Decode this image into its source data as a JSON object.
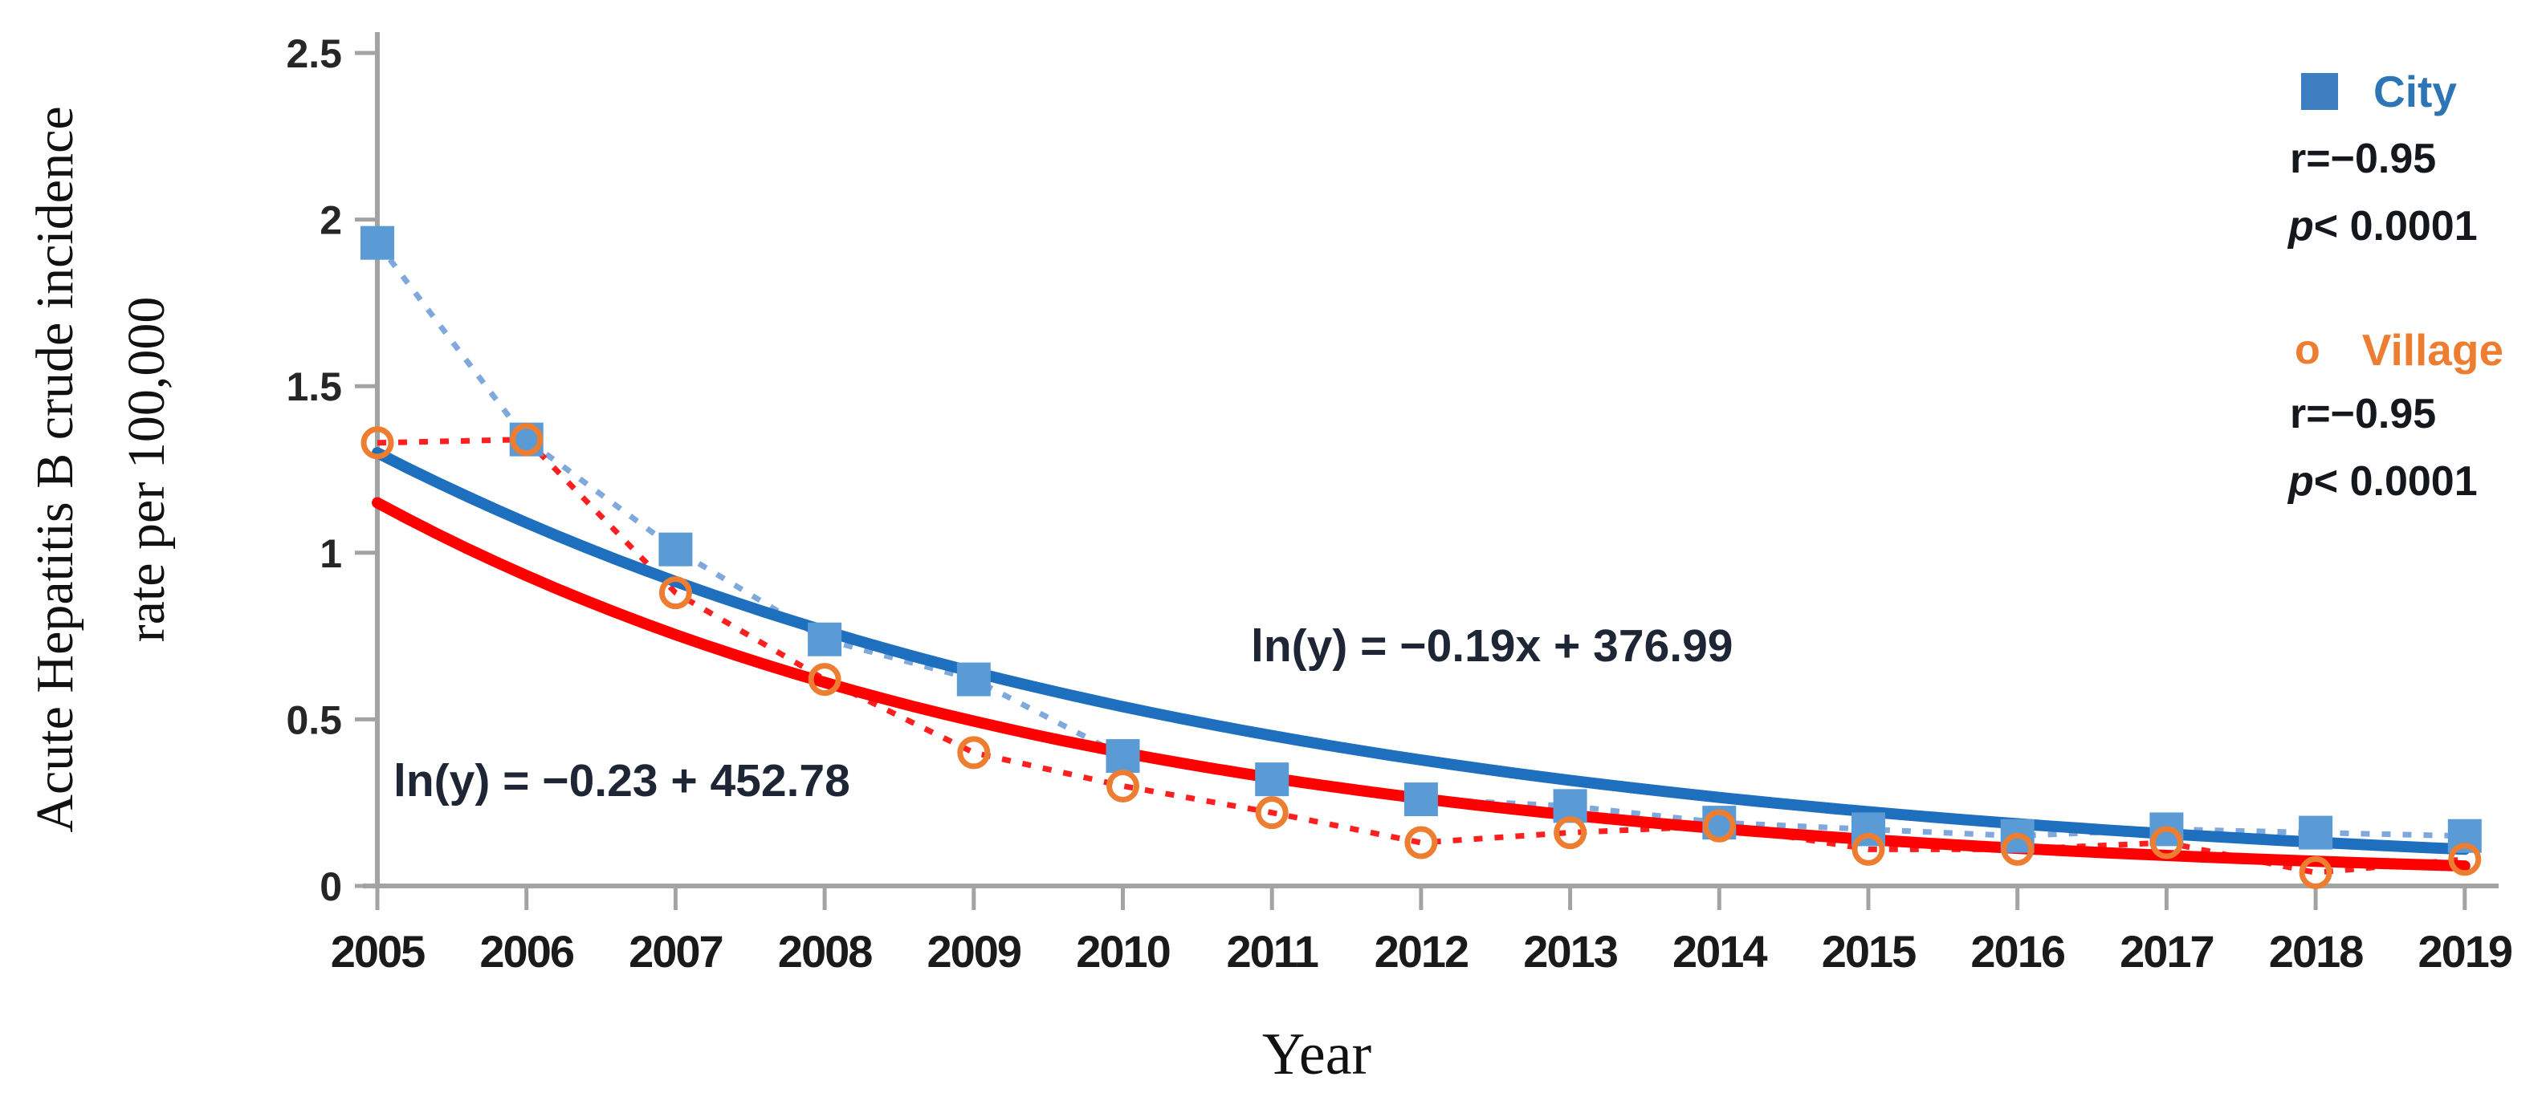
{
  "figure": {
    "background_color": "#ffffff",
    "axis_color": "#a3a3a3",
    "y_axis_title_line1": "Acute Hepatitis B crude incidence",
    "y_axis_title_line2": "rate per 100,000",
    "x_axis_title": "Year",
    "legend": {
      "city_label": "City",
      "city_label_color": "#2E75B6",
      "city_swatch_color": "#3e7fc1",
      "city_r": "r=−0.95",
      "village_marker_glyph": "o",
      "village_label": "Village",
      "village_label_color": "#ED7D31",
      "village_r": "r=−0.95",
      "p_symbol": "p",
      "city_p_value": "< 0.0001",
      "village_p_value": "< 0.0001"
    }
  },
  "chart_data": {
    "type": "line",
    "title": "",
    "xlabel": "Year",
    "ylabel": "Acute Hepatitis B crude incidence rate per 100,000",
    "x": [
      2005,
      2006,
      2007,
      2008,
      2009,
      2010,
      2011,
      2012,
      2013,
      2014,
      2015,
      2016,
      2017,
      2018,
      2019
    ],
    "x_tick_labels": [
      "2005",
      "2006",
      "2007",
      "2008",
      "2009",
      "2010",
      "2011",
      "2012",
      "2013",
      "2014",
      "2015",
      "2016",
      "2017",
      "2018",
      "2019"
    ],
    "y_ticks": [
      0,
      0.5,
      1,
      1.5,
      2,
      2.5
    ],
    "y_tick_labels": [
      "0",
      "0.5",
      "1",
      "1.5",
      "2",
      "2.5"
    ],
    "ylim": [
      0,
      2.5
    ],
    "grid": false,
    "legend_position": "top-right",
    "series": [
      {
        "name": "City",
        "kind": "data",
        "marker": "square",
        "marker_color": "#5B9BD5",
        "line_color": "#7fa8dc",
        "line_style": "dashed",
        "values": [
          1.93,
          1.34,
          1.01,
          0.74,
          0.62,
          0.39,
          0.32,
          0.26,
          0.24,
          0.19,
          0.17,
          0.15,
          0.17,
          0.16,
          0.15
        ],
        "r": "r=−0.95",
        "p": "p< 0.0001"
      },
      {
        "name": "Village",
        "kind": "data",
        "marker": "circle",
        "marker_color": "#ED7D31",
        "line_color": "#ff1f1f",
        "line_style": "dashed",
        "values": [
          1.33,
          1.34,
          0.88,
          0.62,
          0.4,
          0.3,
          0.22,
          0.13,
          0.16,
          0.18,
          0.11,
          0.11,
          0.13,
          0.04,
          0.08
        ],
        "r": "r=−0.95",
        "p": "p< 0.0001"
      },
      {
        "name": "City exponential trend",
        "kind": "trend",
        "line_color": "#1e6fbe",
        "line_style": "solid",
        "start_value": 1.3,
        "end_value": 0.11,
        "equation": "ln(y) = −0.19x + 376.99"
      },
      {
        "name": "Village exponential trend",
        "kind": "trend",
        "line_color": "#ff0000",
        "line_style": "solid",
        "start_value": 1.15,
        "end_value": 0.06,
        "equation": "ln(y) = −0.23 + 452.78"
      }
    ]
  }
}
